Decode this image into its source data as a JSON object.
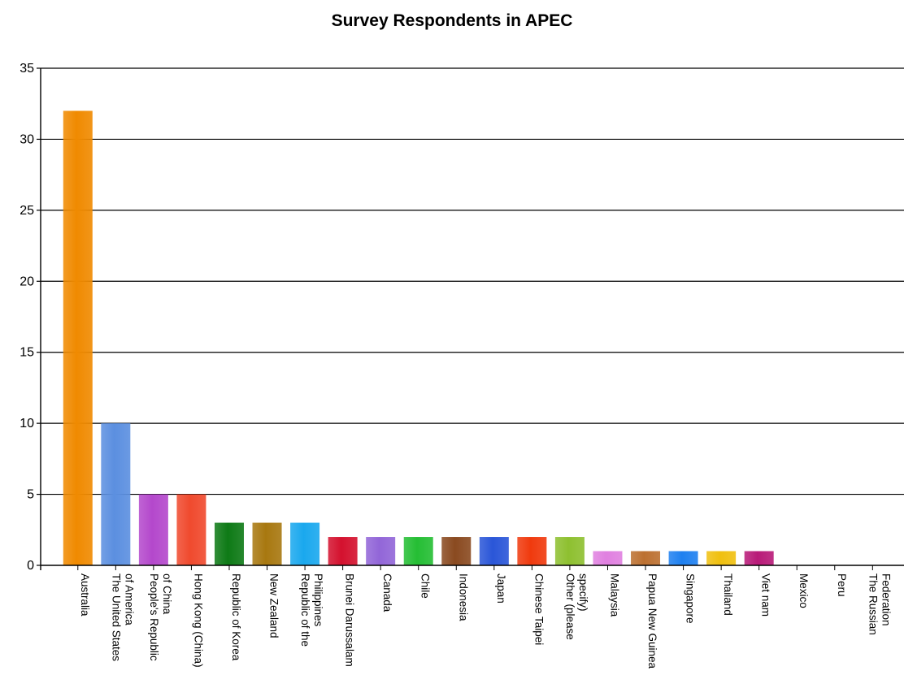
{
  "chart_data": {
    "type": "bar",
    "title": "Survey Respondents in APEC",
    "xlabel": "",
    "ylabel": "",
    "ylim": [
      0,
      35
    ],
    "yticks": [
      0,
      5,
      10,
      15,
      20,
      25,
      30,
      35
    ],
    "grid": true,
    "legend": "none",
    "categories": [
      [
        "Australia"
      ],
      [
        "The United States",
        "of America"
      ],
      [
        "People's Republic",
        "of China"
      ],
      [
        "Hong Kong (China)"
      ],
      [
        "Republic of Korea"
      ],
      [
        "New Zealand"
      ],
      [
        "Republic of the",
        "Philippines"
      ],
      [
        "Brunei Darussalam"
      ],
      [
        "Canada"
      ],
      [
        "Chile"
      ],
      [
        "Indonesia"
      ],
      [
        "Japan"
      ],
      [
        "Chinese Taipei"
      ],
      [
        "Other (please",
        "specify)"
      ],
      [
        "Malaysia"
      ],
      [
        "Papua New Guinea"
      ],
      [
        "Singapore"
      ],
      [
        "Thailand"
      ],
      [
        "Viet nam"
      ],
      [
        "Mexico"
      ],
      [
        "Peru"
      ],
      [
        "The Russian",
        "Federation"
      ]
    ],
    "values": [
      32,
      10,
      5,
      5,
      3,
      3,
      3,
      2,
      2,
      2,
      2,
      2,
      2,
      2,
      1,
      1,
      1,
      1,
      1,
      0,
      0,
      0
    ],
    "colors": [
      "#F08A00",
      "#5B8FE0",
      "#B448CC",
      "#F04A2E",
      "#0E7A16",
      "#A87810",
      "#1AA8EE",
      "#D4112E",
      "#9266D8",
      "#25BE34",
      "#8A4A20",
      "#2A56D8",
      "#F03A0E",
      "#8EC030",
      "#E080E0",
      "#BC7030",
      "#1E80F0",
      "#F0C010",
      "#B81A78",
      "#888888",
      "#888888",
      "#888888"
    ]
  }
}
